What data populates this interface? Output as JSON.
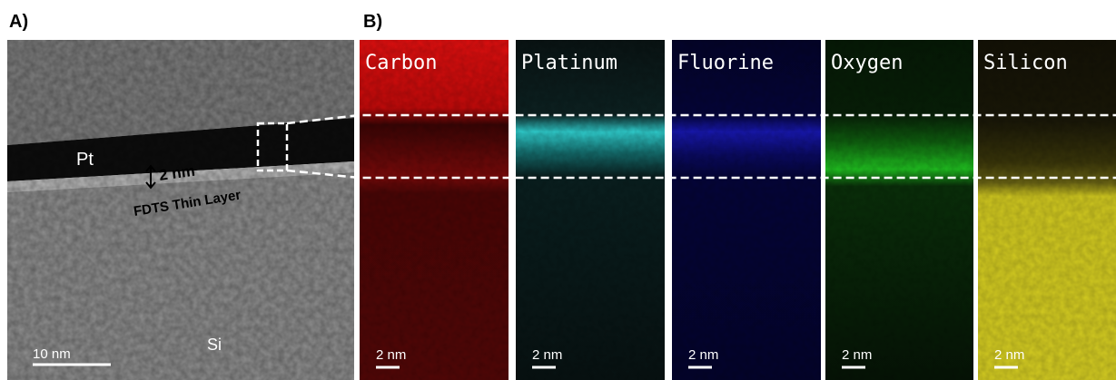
{
  "panel_a": {
    "label": "A)",
    "annotations": {
      "pt": "Pt",
      "thickness": "2 nm",
      "layer": "FDTS Thin Layer",
      "substrate": "Si"
    },
    "scale_bar": "10 nm"
  },
  "panel_b": {
    "label": "B)",
    "maps": [
      {
        "element": "Carbon",
        "scale_bar": "2 nm"
      },
      {
        "element": "Platinum",
        "scale_bar": "2 nm"
      },
      {
        "element": "Fluorine",
        "scale_bar": "2 nm"
      },
      {
        "element": "Oxygen",
        "scale_bar": "2 nm"
      },
      {
        "element": "Silicon",
        "scale_bar": "2 nm"
      }
    ]
  }
}
